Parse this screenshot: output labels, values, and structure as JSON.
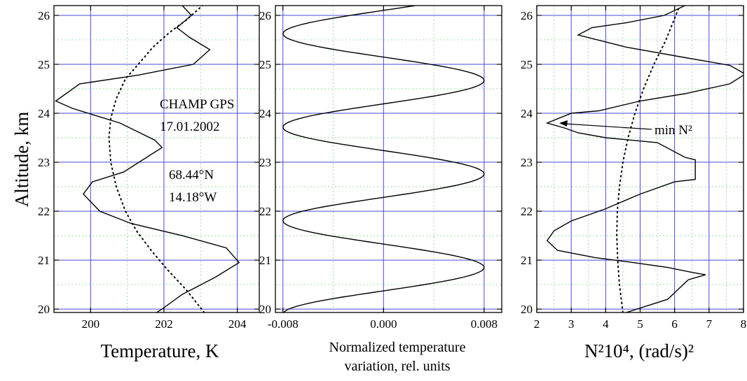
{
  "chart_data": [
    {
      "type": "line",
      "panel": "temperature",
      "ylabel": "Altitude, km",
      "xlabel": "Temperature, K",
      "xlim": [
        199.0,
        204.6
      ],
      "ylim": [
        19.93,
        26.2
      ],
      "xticks": [
        200,
        202,
        204
      ],
      "yticks": [
        20,
        21,
        22,
        23,
        24,
        25,
        26
      ],
      "grid": true,
      "annotations": {
        "station": "CHAMP GPS",
        "date": "17.01.2002",
        "lat": "68.44°N",
        "lon": "14.18°W"
      },
      "series": [
        {
          "style": "solid",
          "x": [
            201.8,
            201.95,
            202.5,
            203.4,
            204.05,
            203.7,
            202.5,
            201.1,
            200.25,
            199.8,
            200.05,
            200.9,
            201.95,
            201.75,
            200.8,
            199.5,
            199.05,
            199.7,
            201.3,
            202.8,
            203.25,
            202.7,
            202.35,
            202.75,
            202.5
          ],
          "y": [
            19.93,
            20.0,
            20.3,
            20.65,
            20.95,
            21.25,
            21.5,
            21.75,
            22.0,
            22.35,
            22.6,
            22.8,
            23.3,
            23.45,
            23.8,
            24.1,
            24.25,
            24.6,
            24.78,
            25.0,
            25.3,
            25.55,
            25.75,
            26.0,
            26.2
          ]
        },
        {
          "style": "dotted",
          "x": [
            203.1,
            202.6,
            202.1,
            201.65,
            201.25,
            200.95,
            200.7,
            200.55,
            200.5,
            200.55,
            200.7,
            200.95,
            201.3,
            201.7,
            202.15,
            202.6,
            203.05
          ],
          "y": [
            19.93,
            20.4,
            20.8,
            21.2,
            21.6,
            22.0,
            22.5,
            23.0,
            23.5,
            23.9,
            24.3,
            24.7,
            25.0,
            25.35,
            25.65,
            25.9,
            26.2
          ]
        }
      ]
    },
    {
      "type": "line",
      "panel": "normalized",
      "xlabel_line1": "Normalized temperature",
      "xlabel_line2": "variation, rel. units",
      "xlim": [
        -0.0086,
        0.0094
      ],
      "ylim": [
        19.93,
        26.2
      ],
      "xticks": [
        -0.008,
        0.0,
        0.008
      ],
      "xtick_labels": [
        "-0.008",
        "0.000",
        "0.008"
      ],
      "yticks": [
        20,
        21,
        22,
        23,
        24,
        25,
        26
      ],
      "grid": true,
      "series": [
        {
          "style": "solid",
          "amplitude": 0.008,
          "period_km": 1.91,
          "phase_alt_km": 20.85,
          "y_range": [
            19.93,
            26.2
          ]
        }
      ]
    },
    {
      "type": "line",
      "panel": "buoyancy",
      "xlabel": "N²10⁴, (rad/s)²",
      "xlim": [
        2,
        8
      ],
      "ylim": [
        19.93,
        26.2
      ],
      "xticks": [
        2,
        3,
        4,
        5,
        6,
        7,
        8
      ],
      "yticks": [
        20,
        21,
        22,
        23,
        24,
        25,
        26
      ],
      "grid": true,
      "annotation": "min N²",
      "series": [
        {
          "style": "solid",
          "x": [
            4.6,
            5.8,
            6.4,
            6.9,
            6.5,
            5.8,
            4.8,
            3.7,
            2.6,
            2.3,
            2.5,
            3.0,
            4.0,
            5.0,
            6.0,
            6.6,
            6.6,
            6.3,
            5.5,
            4.0,
            3.2,
            2.8,
            2.3,
            3.0,
            3.8,
            5.0,
            6.3,
            7.6,
            8.05,
            7.6,
            6.2,
            4.6,
            3.2,
            3.6,
            4.6,
            5.7,
            6.3
          ],
          "y": [
            19.93,
            20.2,
            20.6,
            20.7,
            20.75,
            20.85,
            20.95,
            21.05,
            21.2,
            21.4,
            21.6,
            21.8,
            22.05,
            22.35,
            22.6,
            22.65,
            23.05,
            23.1,
            23.4,
            23.5,
            23.6,
            23.7,
            23.8,
            24.0,
            24.05,
            24.25,
            24.4,
            24.6,
            24.8,
            24.98,
            25.15,
            25.35,
            25.6,
            25.75,
            25.85,
            26.0,
            26.2
          ]
        },
        {
          "style": "dotted",
          "x": [
            4.5,
            4.4,
            4.35,
            4.32,
            4.34,
            4.4,
            4.5,
            4.65,
            4.85,
            5.1,
            5.4,
            5.75,
            6.15
          ],
          "y": [
            19.93,
            20.5,
            21.0,
            21.5,
            22.0,
            22.5,
            23.0,
            23.5,
            24.0,
            24.5,
            25.0,
            25.5,
            26.2
          ]
        }
      ]
    }
  ]
}
